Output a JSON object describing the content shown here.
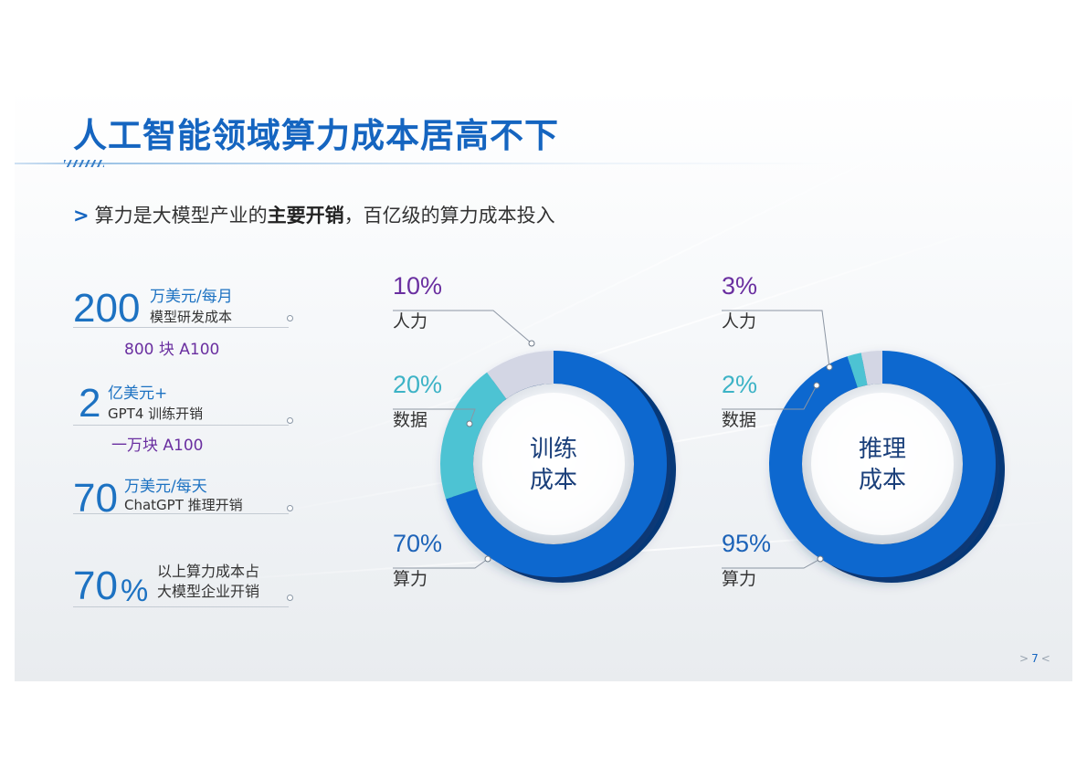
{
  "header": {
    "title": "人工智能领域算力成本居高不下",
    "subtitle_arrow": ">",
    "subtitle_pre": "算力是大模型产业的",
    "subtitle_bold": "主要开销",
    "subtitle_post": "，百亿级的算力成本投入"
  },
  "stats": [
    {
      "value": "200",
      "unit": "万美元/每月",
      "desc": "模型研发成本",
      "note": "800 块 A100"
    },
    {
      "value": "2",
      "unit": "亿美元+",
      "desc": "GPT4 训练开销",
      "note": "一万块 A100"
    },
    {
      "value": "70",
      "unit": "万美元/每天",
      "desc": "ChatGPT 推理开销",
      "note": ""
    },
    {
      "value": "70",
      "value_suffix": "%",
      "unit": "以上算力成本占",
      "desc": "大模型企业开销",
      "note": ""
    }
  ],
  "chart_data": [
    {
      "type": "pie",
      "center_label": [
        "训练",
        "成本"
      ],
      "categories": [
        "算力",
        "数据",
        "人力"
      ],
      "values": [
        70,
        20,
        10
      ],
      "value_labels": [
        "70%",
        "20%",
        "10%"
      ],
      "colors": [
        "#0a67cf",
        "#4ec3d3",
        "#d3d6e4"
      ]
    },
    {
      "type": "pie",
      "center_label": [
        "推理",
        "成本"
      ],
      "categories": [
        "算力",
        "数据",
        "人力"
      ],
      "values": [
        95,
        2,
        3
      ],
      "value_labels": [
        "95%",
        "2%",
        "3%"
      ],
      "colors": [
        "#0a67cf",
        "#4ec3d3",
        "#d3d6e4"
      ]
    }
  ],
  "colors": {
    "title": "#1565c0",
    "accent_purple": "#6a2fa0",
    "ring_blue": "#0a67cf",
    "ring_teal": "#4ec3d3",
    "ring_gray": "#d3d6e4"
  },
  "footer": {
    "left_mark": ">",
    "page": "7",
    "right_mark": "<"
  }
}
